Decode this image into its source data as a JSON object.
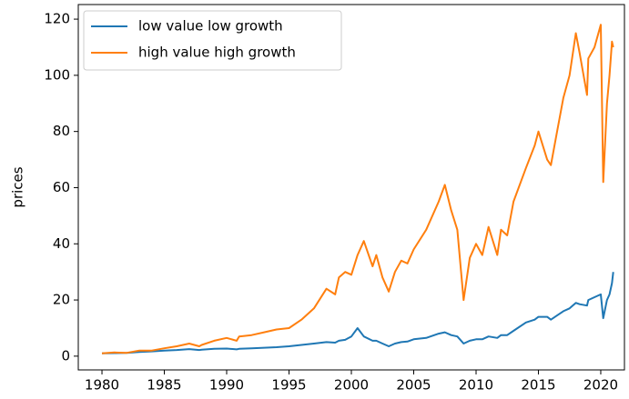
{
  "chart_data": {
    "type": "line",
    "ylabel": "prices",
    "x": [
      1980,
      1981,
      1982,
      1983,
      1984,
      1985,
      1986,
      1987,
      1987.8,
      1988,
      1989,
      1990,
      1990.8,
      1991,
      1992,
      1993,
      1994,
      1995,
      1996,
      1997,
      1998,
      1998.7,
      1999,
      1999.5,
      2000,
      2000.5,
      2001,
      2001.7,
      2002,
      2002.5,
      2003,
      2003.5,
      2004,
      2004.5,
      2005,
      2006,
      2007,
      2007.5,
      2008,
      2008.5,
      2009,
      2009.5,
      2010,
      2010.5,
      2011,
      2011.7,
      2012,
      2012.5,
      2013,
      2014,
      2014.7,
      2015,
      2015.7,
      2016,
      2016.5,
      2017,
      2017.5,
      2018,
      2018.3,
      2018.9,
      2019,
      2019.5,
      2020,
      2020.2,
      2020.5,
      2020.7,
      2020.9,
      2021
    ],
    "series": [
      {
        "name": "low value low growth",
        "color": "#1f77b4",
        "values": [
          1,
          1.1,
          1.2,
          1.5,
          1.7,
          2,
          2.2,
          2.5,
          2.2,
          2.3,
          2.6,
          2.7,
          2.4,
          2.6,
          2.8,
          3,
          3.2,
          3.5,
          4,
          4.5,
          5,
          4.8,
          5.5,
          5.8,
          7,
          10,
          7,
          5.5,
          5.5,
          4.5,
          3.5,
          4.5,
          5,
          5.2,
          6,
          6.5,
          8,
          8.5,
          7.5,
          7,
          4.5,
          5.5,
          6,
          6,
          7,
          6.5,
          7.5,
          7.5,
          9,
          12,
          13,
          14,
          14,
          13,
          14.5,
          16,
          17,
          19,
          18.5,
          18,
          20,
          21,
          22,
          13.5,
          20,
          22,
          26,
          30
        ]
      },
      {
        "name": "high value high growth",
        "color": "#ff7f0e",
        "values": [
          1,
          1.3,
          1.2,
          2,
          2,
          2.8,
          3.5,
          4.5,
          3.5,
          4,
          5.5,
          6.5,
          5.5,
          7,
          7.5,
          8.5,
          9.5,
          10,
          13,
          17,
          24,
          22,
          28,
          30,
          29,
          36,
          41,
          32,
          36,
          28,
          23,
          30,
          34,
          33,
          38,
          45,
          55,
          61,
          52,
          45,
          20,
          35,
          40,
          36,
          46,
          36,
          45,
          43,
          55,
          67,
          75,
          80,
          70,
          68,
          80,
          92,
          100,
          115,
          108,
          93,
          106,
          110,
          118,
          62,
          90,
          100,
          112,
          110
        ]
      }
    ],
    "xlim": [
      1978.1,
      2021.9
    ],
    "xticks": [
      1980,
      1985,
      1990,
      1995,
      2000,
      2005,
      2010,
      2015,
      2020
    ],
    "ylim": [
      -4.9,
      125.2
    ],
    "yticks": [
      0,
      20,
      40,
      60,
      80,
      100,
      120
    ],
    "legend": "upper left"
  }
}
